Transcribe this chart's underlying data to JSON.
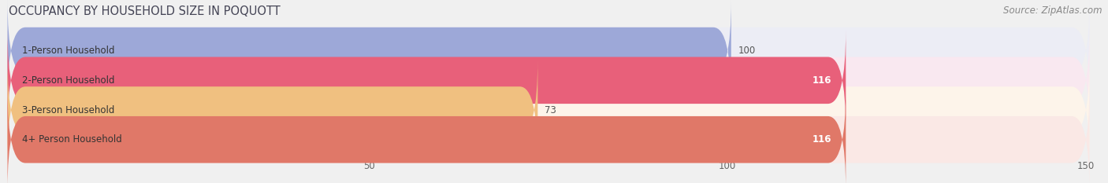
{
  "title": "OCCUPANCY BY HOUSEHOLD SIZE IN POQUOTT",
  "source": "Source: ZipAtlas.com",
  "categories": [
    "1-Person Household",
    "2-Person Household",
    "3-Person Household",
    "4+ Person Household"
  ],
  "values": [
    100,
    116,
    73,
    116
  ],
  "bar_colors": [
    "#9da8d8",
    "#e8607a",
    "#f0c080",
    "#e07868"
  ],
  "bg_colors": [
    "#ecedf5",
    "#f9e8f0",
    "#fdf4ea",
    "#fae8e5"
  ],
  "xlim": [
    0,
    150
  ],
  "xticks": [
    50,
    100,
    150
  ],
  "value_label_colors": [
    "#555555",
    "#ffffff",
    "#555555",
    "#ffffff"
  ],
  "title_color": "#444455",
  "source_color": "#888888",
  "title_fontsize": 10.5,
  "source_fontsize": 8.5,
  "label_fontsize": 8.5,
  "tick_fontsize": 8.5,
  "bar_height": 0.58,
  "background_color": "#f0f0f0"
}
